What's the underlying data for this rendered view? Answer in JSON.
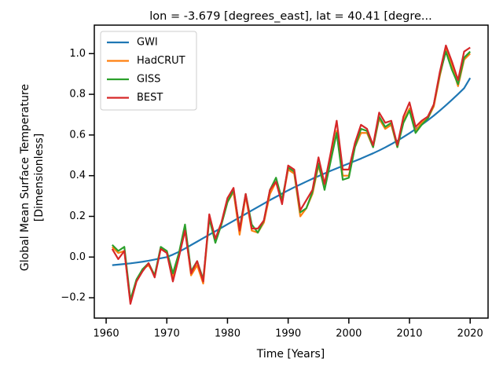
{
  "chart_data": {
    "type": "line",
    "title": "lon = -3.679 [degrees_east], lat = 40.41 [degre...",
    "xlabel": "Time [Years]",
    "ylabel": [
      "Global Mean Surface Temperature",
      "[Dimensionless]"
    ],
    "x": [
      1961,
      1962,
      1963,
      1964,
      1965,
      1966,
      1967,
      1968,
      1969,
      1970,
      1971,
      1972,
      1973,
      1974,
      1975,
      1976,
      1977,
      1978,
      1979,
      1980,
      1981,
      1982,
      1983,
      1984,
      1985,
      1986,
      1987,
      1988,
      1989,
      1990,
      1991,
      1992,
      1993,
      1994,
      1995,
      1996,
      1997,
      1998,
      1999,
      2000,
      2001,
      2002,
      2003,
      2004,
      2005,
      2006,
      2007,
      2008,
      2009,
      2010,
      2011,
      2012,
      2013,
      2014,
      2015,
      2016,
      2017,
      2018,
      2019,
      2020
    ],
    "series": [
      {
        "name": "GWI",
        "color": "#1f77b4",
        "values": [
          -0.04,
          -0.037,
          -0.034,
          -0.031,
          -0.027,
          -0.023,
          -0.018,
          -0.012,
          -0.006,
          0.0,
          0.012,
          0.026,
          0.042,
          0.059,
          0.076,
          0.093,
          0.11,
          0.127,
          0.144,
          0.161,
          0.178,
          0.195,
          0.212,
          0.229,
          0.246,
          0.263,
          0.28,
          0.296,
          0.312,
          0.328,
          0.343,
          0.357,
          0.371,
          0.385,
          0.398,
          0.411,
          0.424,
          0.436,
          0.448,
          0.46,
          0.472,
          0.484,
          0.497,
          0.51,
          0.524,
          0.539,
          0.555,
          0.572,
          0.59,
          0.609,
          0.629,
          0.65,
          0.672,
          0.695,
          0.72,
          0.746,
          0.773,
          0.801,
          0.83,
          0.88
        ]
      },
      {
        "name": "HadCRUT",
        "color": "#ff7f0e",
        "values": [
          0.05,
          0.02,
          0.03,
          -0.22,
          -0.12,
          -0.06,
          -0.04,
          -0.09,
          0.04,
          0.03,
          -0.1,
          0.01,
          0.14,
          -0.09,
          -0.04,
          -0.13,
          0.19,
          0.08,
          0.16,
          0.27,
          0.32,
          0.11,
          0.3,
          0.13,
          0.12,
          0.17,
          0.31,
          0.37,
          0.27,
          0.43,
          0.41,
          0.2,
          0.24,
          0.31,
          0.45,
          0.34,
          0.48,
          0.62,
          0.4,
          0.4,
          0.54,
          0.61,
          0.61,
          0.54,
          0.68,
          0.63,
          0.65,
          0.54,
          0.67,
          0.73,
          0.62,
          0.66,
          0.68,
          0.74,
          0.89,
          1.02,
          0.94,
          0.84,
          0.97,
          1.0
        ]
      },
      {
        "name": "GISS",
        "color": "#2ca02c",
        "values": [
          0.06,
          0.03,
          0.05,
          -0.21,
          -0.11,
          -0.06,
          -0.03,
          -0.09,
          0.05,
          0.03,
          -0.08,
          0.02,
          0.16,
          -0.07,
          -0.02,
          -0.11,
          0.19,
          0.07,
          0.16,
          0.27,
          0.33,
          0.14,
          0.31,
          0.16,
          0.12,
          0.18,
          0.33,
          0.39,
          0.28,
          0.44,
          0.42,
          0.22,
          0.24,
          0.32,
          0.46,
          0.33,
          0.47,
          0.61,
          0.38,
          0.39,
          0.54,
          0.63,
          0.62,
          0.54,
          0.69,
          0.64,
          0.66,
          0.54,
          0.66,
          0.72,
          0.61,
          0.65,
          0.68,
          0.75,
          0.9,
          1.01,
          0.92,
          0.85,
          0.98,
          1.01
        ]
      },
      {
        "name": "BEST",
        "color": "#d62728",
        "values": [
          0.04,
          -0.01,
          0.03,
          -0.23,
          -0.12,
          -0.07,
          -0.03,
          -0.1,
          0.04,
          0.02,
          -0.12,
          0.0,
          0.13,
          -0.08,
          -0.02,
          -0.12,
          0.21,
          0.09,
          0.17,
          0.29,
          0.34,
          0.13,
          0.31,
          0.14,
          0.14,
          0.18,
          0.33,
          0.37,
          0.26,
          0.45,
          0.43,
          0.23,
          0.28,
          0.33,
          0.49,
          0.36,
          0.51,
          0.67,
          0.43,
          0.43,
          0.56,
          0.65,
          0.63,
          0.55,
          0.71,
          0.66,
          0.67,
          0.55,
          0.69,
          0.76,
          0.64,
          0.67,
          0.69,
          0.75,
          0.91,
          1.04,
          0.96,
          0.87,
          1.01,
          1.03
        ]
      }
    ],
    "xlim": [
      1958.05,
      2022.95
    ],
    "ylim": [
      -0.3,
      1.14
    ],
    "xticks": [
      1960,
      1970,
      1980,
      1990,
      2000,
      2010,
      2020
    ],
    "yticks": [
      {
        "value": -0.2,
        "label": "−0.2"
      },
      {
        "value": 0,
        "label": "0.0"
      },
      {
        "value": 0.2,
        "label": "0.2"
      },
      {
        "value": 0.4,
        "label": "0.4"
      },
      {
        "value": 0.6,
        "label": "0.6"
      },
      {
        "value": 0.8,
        "label": "0.8"
      },
      {
        "value": 1.0,
        "label": "1.0"
      }
    ],
    "legend": "upper left"
  }
}
